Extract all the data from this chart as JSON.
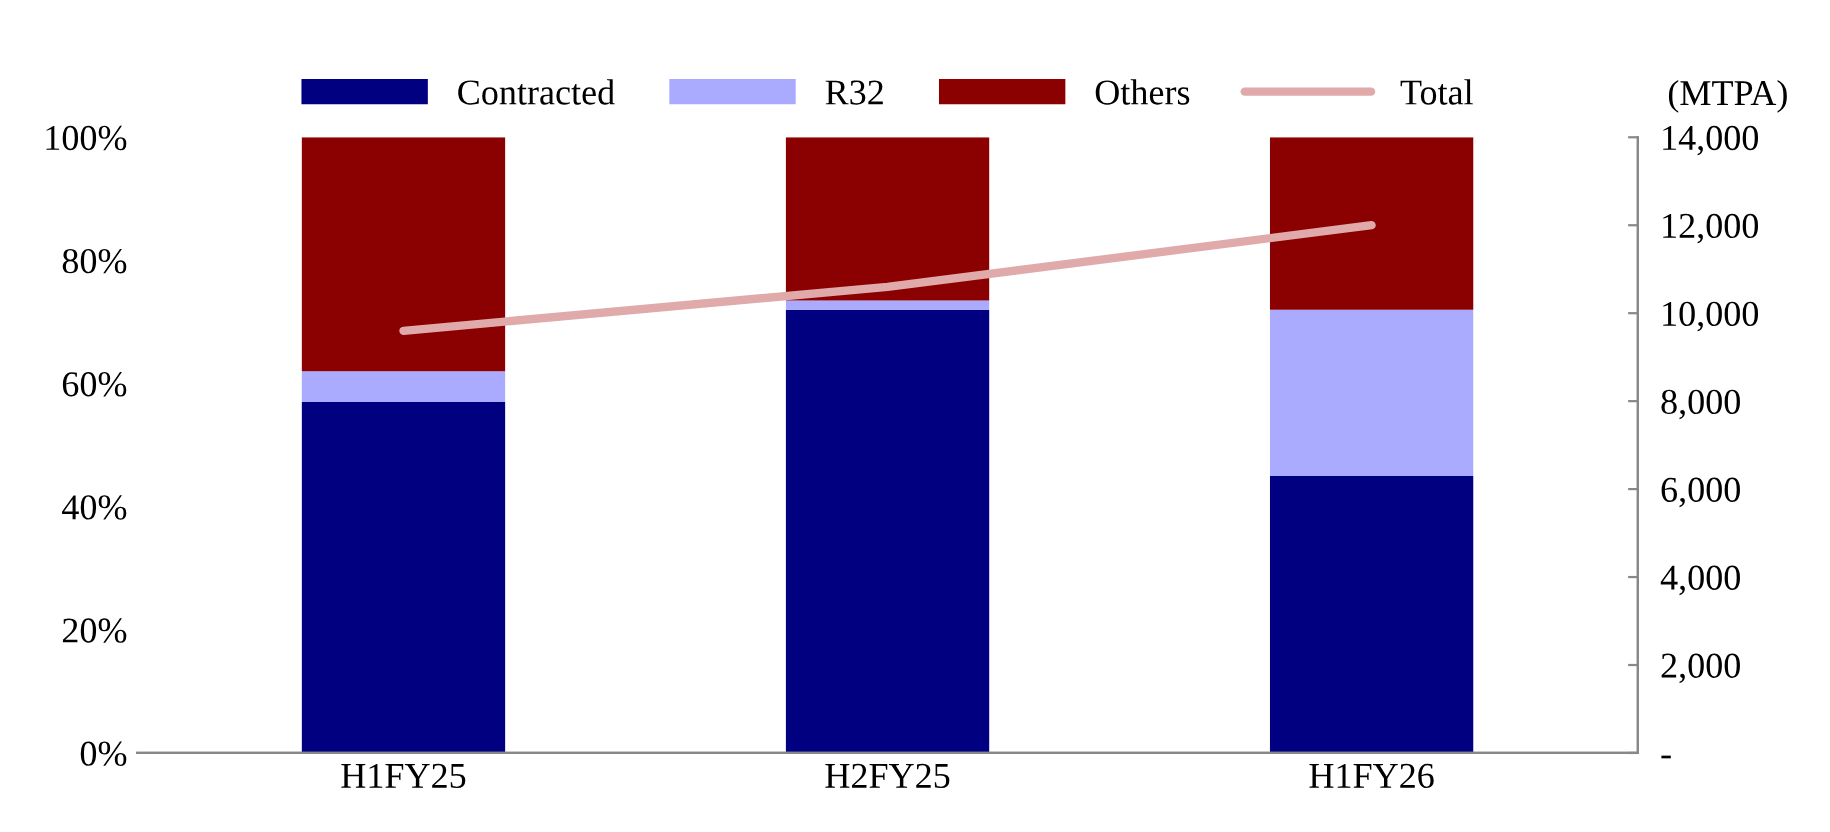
{
  "chart_data": {
    "type": "bar",
    "stacked": true,
    "categories": [
      "H1FY25",
      "H2FY25",
      "H1FY26"
    ],
    "series": [
      {
        "name": "Contracted",
        "color": "#000080",
        "values": [
          57,
          72,
          45
        ]
      },
      {
        "name": "R32",
        "color": "#aaaaff",
        "values": [
          5,
          1.5,
          27
        ]
      },
      {
        "name": "Others",
        "color": "#8b0000",
        "values": [
          38,
          26.5,
          28
        ]
      },
      {
        "name": "Total",
        "type": "line",
        "axis": "y2",
        "color": "#e0aaaa",
        "values": [
          9600,
          10600,
          12000
        ]
      }
    ],
    "ylim": [
      0,
      100
    ],
    "yticks": [
      {
        "value": 0,
        "label": "0%"
      },
      {
        "value": 20,
        "label": "20%"
      },
      {
        "value": 40,
        "label": "40%"
      },
      {
        "value": 60,
        "label": "60%"
      },
      {
        "value": 80,
        "label": "80%"
      },
      {
        "value": 100,
        "label": "100%"
      }
    ],
    "y2lim": [
      0,
      14000
    ],
    "y2ticks": [
      {
        "value": 0,
        "label": "-"
      },
      {
        "value": 2000,
        "label": "2,000"
      },
      {
        "value": 4000,
        "label": "4,000"
      },
      {
        "value": 6000,
        "label": "6,000"
      },
      {
        "value": 8000,
        "label": "8,000"
      },
      {
        "value": 10000,
        "label": "10,000"
      },
      {
        "value": 12000,
        "label": "12,000"
      },
      {
        "value": 14000,
        "label": "14,000"
      }
    ],
    "y2label": "(MTPA)",
    "legend": "top",
    "grid": false,
    "marker": "none",
    "line_style": "solid"
  }
}
